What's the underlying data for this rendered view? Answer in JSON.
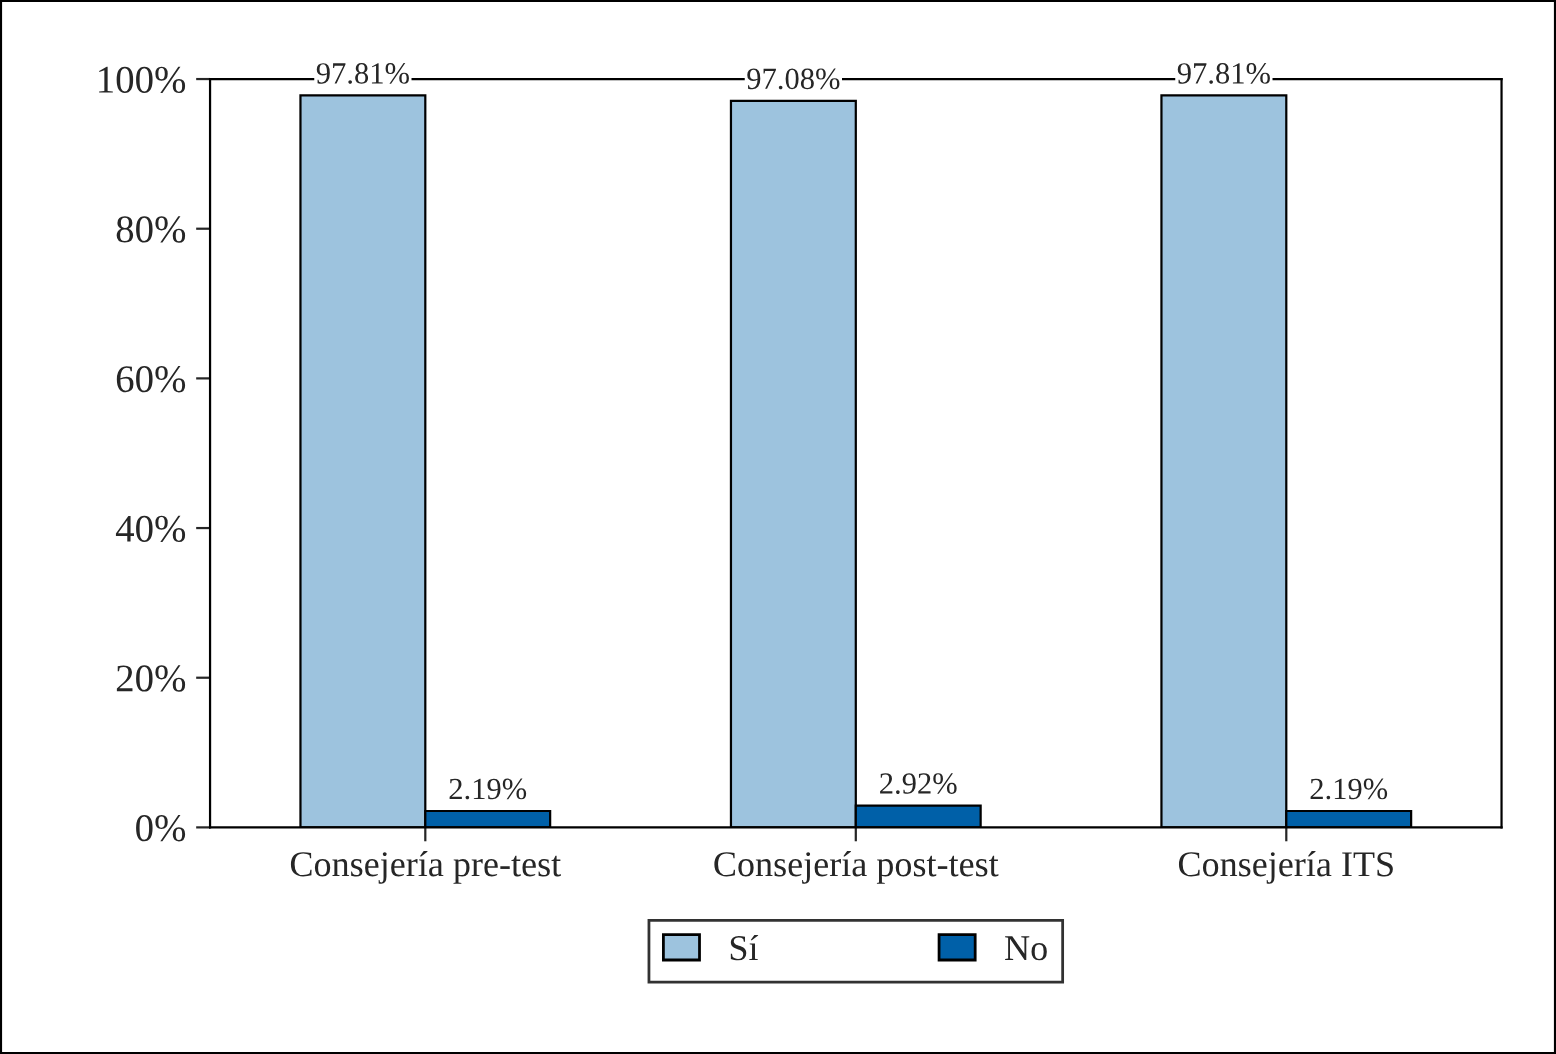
{
  "chart_data": {
    "type": "bar",
    "categories": [
      "Consejería pre-test",
      "Consejería post-test",
      "Consejería ITS"
    ],
    "series": [
      {
        "name": "Sí",
        "color": "#9dc3de",
        "values": [
          97.81,
          97.08,
          97.81
        ],
        "value_labels": [
          "97.81%",
          "97.08%",
          "97.81%"
        ]
      },
      {
        "name": "No",
        "color": "#0060a8",
        "values": [
          2.19,
          2.92,
          2.19
        ],
        "value_labels": [
          "2.19%",
          "2.92%",
          "2.19%"
        ]
      }
    ],
    "ylim": [
      0,
      100
    ],
    "yticks": [
      {
        "value": 0,
        "label": "0%"
      },
      {
        "value": 20,
        "label": "20%"
      },
      {
        "value": 40,
        "label": "40%"
      },
      {
        "value": 60,
        "label": "60%"
      },
      {
        "value": 80,
        "label": "80%"
      },
      {
        "value": 100,
        "label": "100%"
      }
    ],
    "grid": false,
    "legend": "bottom"
  }
}
